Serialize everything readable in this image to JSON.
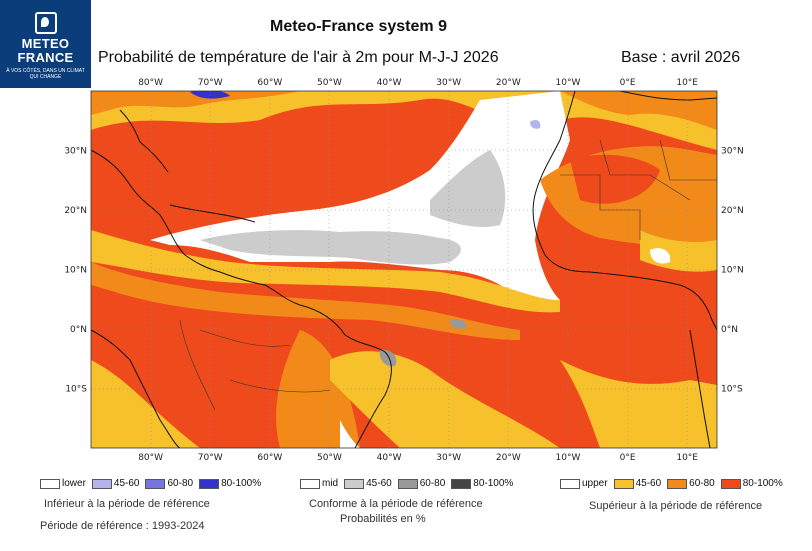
{
  "logo": {
    "line1": "METEO",
    "line2": "FRANCE",
    "tagline": "À VOS CÔTÉS, DANS UN CLIMAT QUI CHANGE"
  },
  "header": {
    "title": "Meteo-France system 9",
    "subtitle": "Probabilité de température de l'air à 2m pour M-J-J 2026",
    "base": "Base : avril 2026"
  },
  "map": {
    "lon_labels": [
      "80°W",
      "70°W",
      "60°W",
      "50°W",
      "40°W",
      "30°W",
      "20°W",
      "10°W",
      "0°E",
      "10°E"
    ],
    "lat_labels": [
      "30°N",
      "20°N",
      "10°N",
      "0°N",
      "10°S"
    ],
    "lon_range": [
      -90,
      15
    ],
    "lat_range": [
      -20,
      40
    ],
    "colors": {
      "upper_45_60": "#f7c12c",
      "upper_60_80": "#f28a1a",
      "upper_80_100": "#ef4a1c",
      "mid_45_60": "#cccccc",
      "mid_60_80": "#999999",
      "mid_80_100": "#444444",
      "lower_45_60": "#b3b3ee",
      "lower_60_80": "#7575dd",
      "lower_80_100": "#3333cc",
      "neutral": "#ffffff"
    }
  },
  "legend": {
    "lower": {
      "items": [
        "lower",
        "45-60",
        "60-80",
        "80-100%"
      ],
      "caption": "Inférieur à la période de référence"
    },
    "mid": {
      "items": [
        "mid",
        "45-60",
        "60-80",
        "80-100%"
      ],
      "caption": "Conforme à la période de référence"
    },
    "upper": {
      "items": [
        "upper",
        "45-60",
        "60-80",
        "80-100%"
      ],
      "caption": "Supérieur à la période de référence"
    },
    "units": "Probabilités en %",
    "reference_period": "Période de référence : 1993-2024"
  }
}
